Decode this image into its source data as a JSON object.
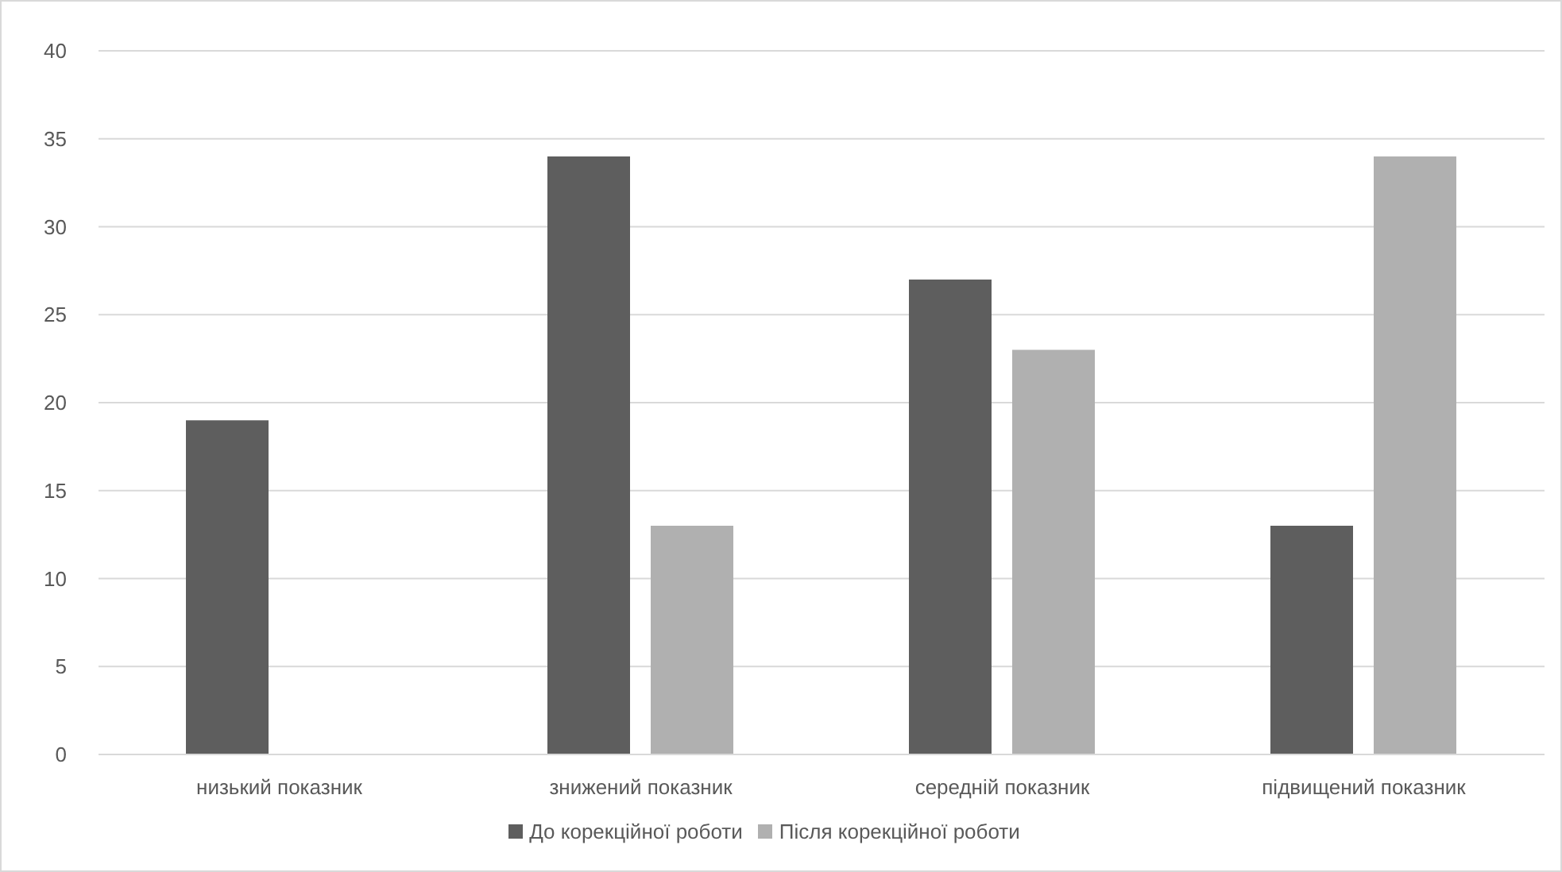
{
  "chart_data": {
    "type": "bar",
    "categories": [
      "низький показник",
      "знижений показник",
      "середній показник",
      "підвищений показник"
    ],
    "series": [
      {
        "name": "До корекційної роботи",
        "color": "#5e5e5e",
        "values": [
          19,
          34,
          27,
          13
        ]
      },
      {
        "name": "Після корекційної роботи",
        "color": "#b0b0b0",
        "values": [
          0,
          13,
          23,
          34
        ]
      }
    ],
    "ylim": [
      0,
      40
    ],
    "yticks": [
      0,
      5,
      10,
      15,
      20,
      25,
      30,
      35,
      40
    ],
    "grid": "y",
    "legend": "bottom"
  }
}
